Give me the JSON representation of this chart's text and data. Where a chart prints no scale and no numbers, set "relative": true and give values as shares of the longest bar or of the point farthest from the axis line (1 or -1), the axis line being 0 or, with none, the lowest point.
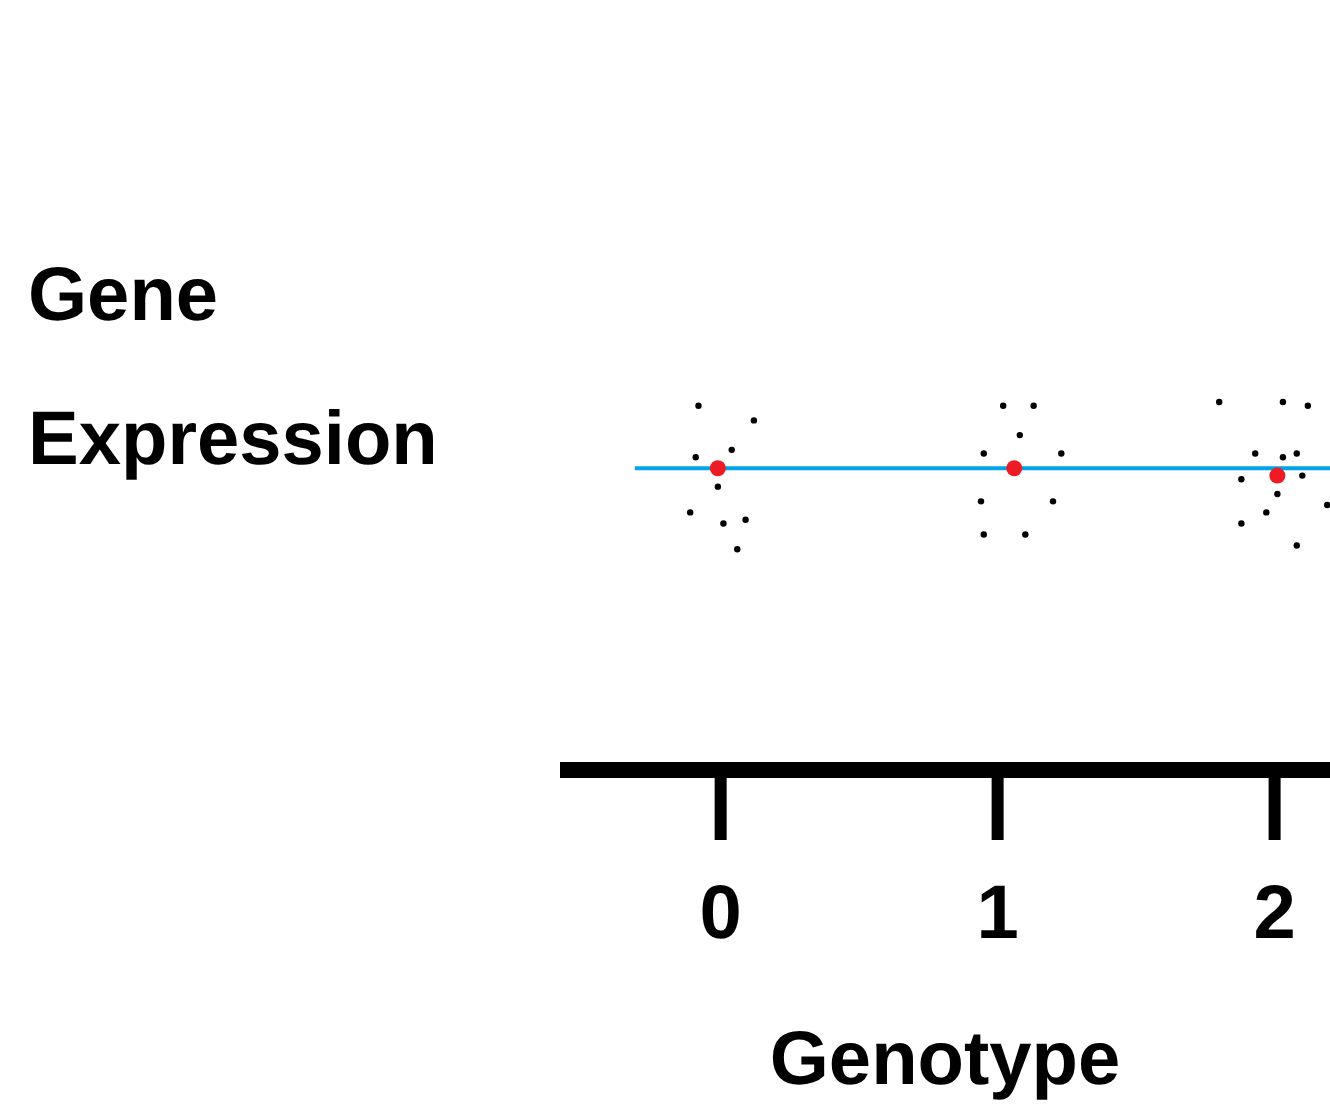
{
  "chart_data": {
    "type": "scatter",
    "relative": true,
    "xlabel": "Genotype",
    "ylabel": "Gene Expression",
    "xlim": [
      -0.58,
      2.2
    ],
    "xticks": [
      0,
      1,
      2
    ],
    "marker": "circle",
    "legend": false,
    "grid": false,
    "series": [
      {
        "color": "#000000",
        "x": [
          -0.08,
          0.12,
          -0.09,
          0.04,
          -0.01,
          -0.11,
          0.01,
          0.09,
          0.06,
          1.02,
          1.13,
          1.08,
          0.95,
          1.23,
          0.94,
          1.2,
          0.95,
          1.1,
          1.8,
          2.03,
          2.12,
          1.93,
          2.03,
          2.08,
          1.88,
          2.1,
          2.01,
          2.19,
          1.88,
          1.97,
          2.08
        ],
        "values": [
          0.99,
          0.95,
          0.85,
          0.87,
          0.77,
          0.7,
          0.67,
          0.68,
          0.6,
          0.99,
          0.99,
          0.91,
          0.86,
          0.86,
          0.73,
          0.73,
          0.64,
          0.64,
          1,
          1,
          0.99,
          0.86,
          0.85,
          0.86,
          0.79,
          0.8,
          0.75,
          0.72,
          0.67,
          0.7,
          0.61
        ]
      },
      {
        "color": "#ed1c24",
        "x": [
          -0.01,
          1.06,
          2.01
        ],
        "values": [
          0.82,
          0.82,
          0.8
        ]
      },
      {
        "type": "line",
        "marker": "none",
        "color": "#00a2e8",
        "x": [
          -0.31,
          2.2
        ],
        "values": [
          0.82,
          0.82
        ]
      }
    ]
  }
}
